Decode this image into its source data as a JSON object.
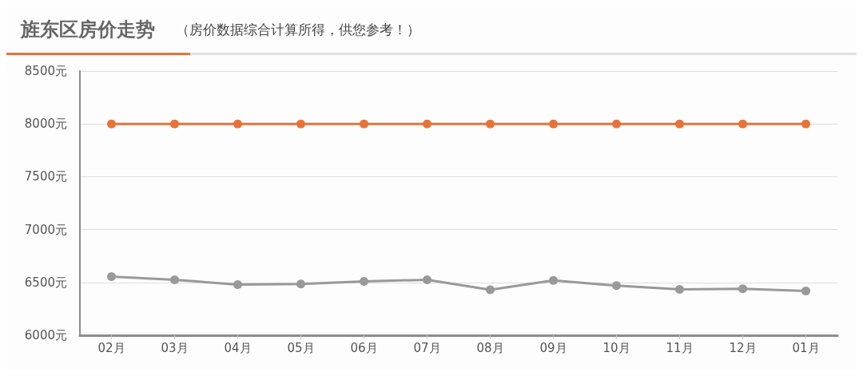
{
  "chart_data": {
    "type": "line",
    "title": "旌东区房价走势",
    "subtitle": "（房价数据综合计算所得，供您参考！）",
    "categories": [
      "02月",
      "03月",
      "04月",
      "05月",
      "06月",
      "07月",
      "08月",
      "09月",
      "10月",
      "11月",
      "12月",
      "01月"
    ],
    "series": [
      {
        "color": "#e8733a",
        "values": [
          8000,
          8000,
          8000,
          8000,
          8000,
          8000,
          8000,
          8000,
          8000,
          8000,
          8000,
          8000
        ]
      },
      {
        "color": "#9a989a",
        "values": [
          6555,
          6525,
          6480,
          6485,
          6510,
          6525,
          6430,
          6520,
          6470,
          6435,
          6440,
          6420
        ]
      }
    ],
    "ylim": [
      6000,
      8500
    ],
    "yticks": [
      {
        "value": 6000,
        "label": "6000元"
      },
      {
        "value": 6500,
        "label": "6500元"
      },
      {
        "value": 7000,
        "label": "7000元"
      },
      {
        "value": 7500,
        "label": "7500元"
      },
      {
        "value": 8000,
        "label": "8000元"
      },
      {
        "value": 8500,
        "label": "8500元"
      }
    ],
    "grid": "y",
    "marker": "circle",
    "line_style": "solid"
  }
}
